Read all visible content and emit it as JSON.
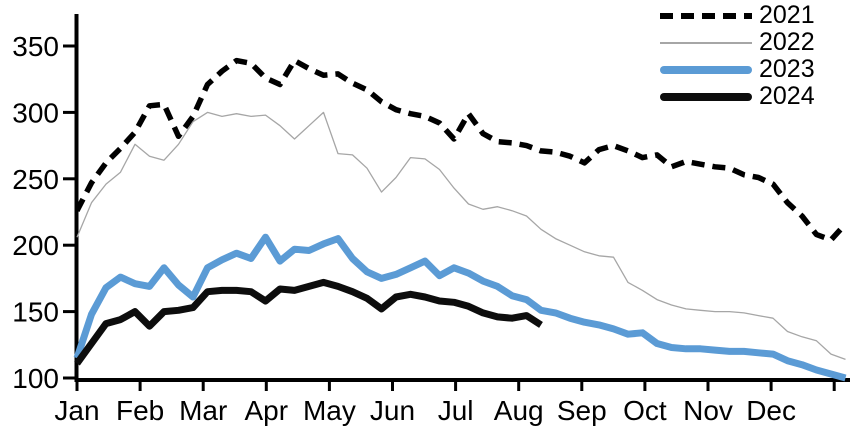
{
  "chart_data": {
    "type": "line",
    "title": "",
    "sampling": "weekly",
    "x_axis": {
      "tick_labels": [
        "Jan",
        "Feb",
        "Mar",
        "Apr",
        "May",
        "Jun",
        "Jul",
        "Aug",
        "Sep",
        "Oct",
        "Nov",
        "Dec"
      ],
      "unit": "month",
      "grid": false
    },
    "y_axis": {
      "ticks": [
        100,
        150,
        200,
        250,
        300,
        350
      ],
      "range": [
        100,
        375
      ],
      "grid": false
    },
    "legend": {
      "position": "top-right",
      "items": [
        "2021",
        "2022",
        "2023",
        "2024"
      ]
    },
    "colors": {
      "series_2021": "#000000",
      "series_2022": "#a6a6a6",
      "series_2023": "#5b9bd5",
      "series_2024": "#0d0d0d",
      "axis": "#000000"
    },
    "series": [
      {
        "name": "2021",
        "style": "dashed",
        "color": "#000000",
        "stroke_width": 5.5,
        "values": [
          226,
          247,
          262,
          273,
          285,
          305,
          306,
          282,
          297,
          321,
          331,
          339,
          337,
          326,
          321,
          339,
          333,
          328,
          329,
          322,
          317,
          308,
          302,
          299,
          297,
          292,
          280,
          299,
          284,
          278,
          277,
          275,
          271,
          270,
          267,
          262,
          272,
          275,
          271,
          266,
          268,
          259,
          263,
          261,
          259,
          258,
          253,
          251,
          246,
          232,
          222,
          208,
          204,
          216
        ]
      },
      {
        "name": "2022",
        "style": "solid",
        "color": "#a6a6a6",
        "stroke_width": 1.3,
        "values": [
          206,
          232,
          246,
          255,
          276,
          267,
          264,
          276,
          293,
          300,
          297,
          299,
          297,
          298,
          290,
          280,
          290,
          300,
          269,
          268,
          258,
          240,
          251,
          266,
          265,
          257,
          243,
          231,
          227,
          229,
          226,
          222,
          212,
          205,
          200,
          195,
          192,
          191,
          172,
          166,
          159,
          155,
          152,
          151,
          150,
          150,
          149,
          147,
          145,
          135,
          131,
          128,
          118,
          114
        ]
      },
      {
        "name": "2023",
        "style": "solid",
        "color": "#5b9bd5",
        "stroke_width": 7,
        "values": [
          115,
          148,
          168,
          176,
          171,
          169,
          183,
          170,
          161,
          183,
          189,
          194,
          190,
          206,
          188,
          197,
          196,
          201,
          205,
          190,
          180,
          175,
          178,
          183,
          188,
          177,
          183,
          179,
          173,
          169,
          162,
          159,
          151,
          149,
          145,
          142,
          140,
          137,
          133,
          134,
          126,
          123,
          122,
          122,
          121,
          120,
          120,
          119,
          118,
          113,
          110,
          106,
          103,
          100
        ]
      },
      {
        "name": "2024",
        "style": "solid",
        "color": "#0d0d0d",
        "stroke_width": 7,
        "values": [
          111,
          126,
          141,
          144,
          150,
          139,
          150,
          151,
          153,
          165,
          166,
          166,
          165,
          158,
          167,
          166,
          169,
          172,
          169,
          165,
          160,
          152,
          161,
          163,
          161,
          158,
          157,
          154,
          149,
          146,
          145,
          147,
          140
        ]
      }
    ]
  }
}
